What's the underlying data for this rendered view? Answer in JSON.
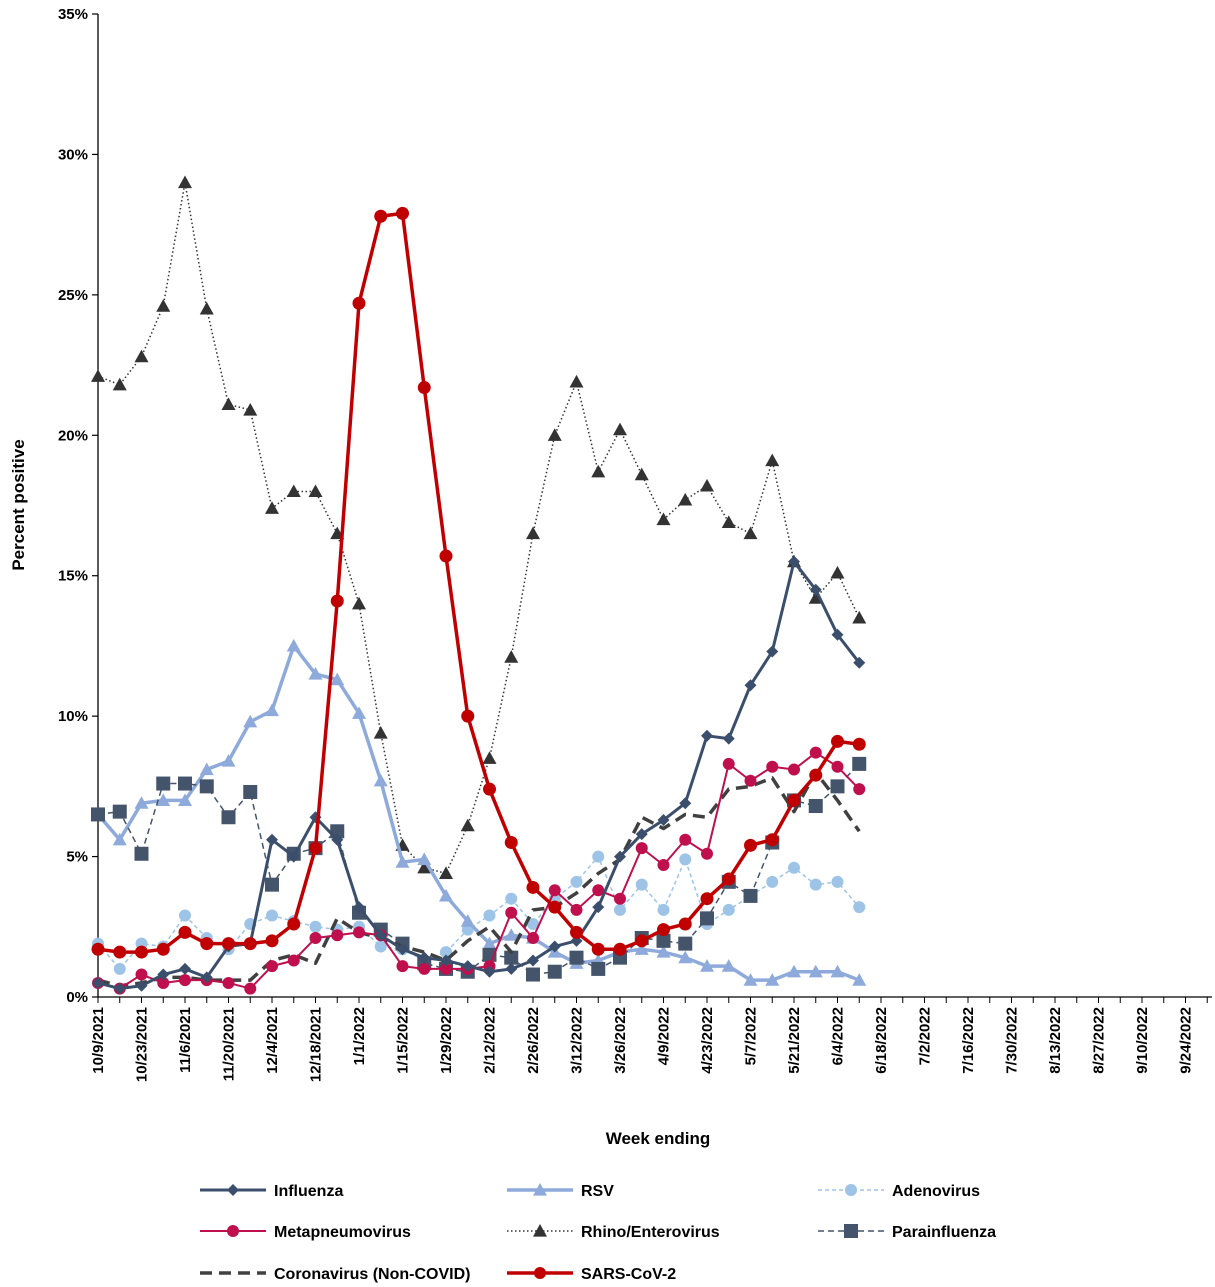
{
  "chart_data": {
    "type": "line",
    "title": "",
    "xlabel": "Week ending",
    "ylabel": "Percent positive",
    "ylim": [
      0,
      35
    ],
    "y_ticks": [
      "0%",
      "5%",
      "10%",
      "15%",
      "20%",
      "25%",
      "30%",
      "35%"
    ],
    "x_tick_labels": [
      "10/9/2021",
      "10/23/2021",
      "11/6/2021",
      "11/20/2021",
      "12/4/2021",
      "12/18/2021",
      "1/1/2022",
      "1/15/2022",
      "1/29/2022",
      "2/12/2022",
      "2/26/2022",
      "3/12/2022",
      "3/26/2022",
      "4/9/2022",
      "4/23/2022",
      "5/7/2022",
      "5/21/2022",
      "6/4/2022",
      "6/18/2022",
      "7/2/2022",
      "7/16/2022",
      "7/30/2022",
      "8/13/2022",
      "8/27/2022",
      "9/10/2022",
      "9/24/2022"
    ],
    "x": [
      "10/9/2021",
      "10/16/2021",
      "10/23/2021",
      "10/30/2021",
      "11/6/2021",
      "11/13/2021",
      "11/20/2021",
      "11/27/2021",
      "12/4/2021",
      "12/11/2021",
      "12/18/2021",
      "12/25/2021",
      "1/1/2022",
      "1/8/2022",
      "1/15/2022",
      "1/22/2022",
      "1/29/2022",
      "2/5/2022",
      "2/12/2022",
      "2/19/2022",
      "2/26/2022",
      "3/5/2022",
      "3/12/2022",
      "3/19/2022",
      "3/26/2022",
      "4/2/2022",
      "4/9/2022",
      "4/16/2022",
      "4/23/2022",
      "4/30/2022",
      "5/7/2022",
      "5/14/2022",
      "5/21/2022",
      "5/28/2022",
      "6/4/2022",
      "6/11/2022"
    ],
    "grid": false,
    "legend_position": "bottom",
    "series": [
      {
        "name": "Influenza",
        "color": "#3b4e6b",
        "marker": "diamond",
        "dash": "solid",
        "width": 3,
        "values": [
          0.5,
          0.3,
          0.4,
          0.8,
          1.0,
          0.7,
          1.8,
          1.9,
          5.6,
          5.0,
          6.4,
          5.6,
          3.2,
          2.2,
          1.7,
          1.4,
          1.3,
          1.1,
          0.9,
          1.0,
          1.3,
          1.8,
          2.0,
          3.2,
          5.0,
          5.8,
          6.3,
          6.9,
          9.3,
          9.2,
          11.1,
          12.3,
          15.5,
          14.5,
          12.9,
          11.9
        ]
      },
      {
        "name": "RSV",
        "color": "#8eaadb",
        "marker": "triangle",
        "dash": "solid",
        "width": 3.5,
        "values": [
          6.5,
          5.6,
          6.9,
          7.0,
          7.0,
          8.1,
          8.4,
          9.8,
          10.2,
          12.5,
          11.5,
          11.3,
          10.1,
          7.7,
          4.8,
          4.9,
          3.6,
          2.7,
          1.9,
          2.2,
          2.1,
          1.6,
          1.2,
          1.3,
          1.6,
          1.7,
          1.6,
          1.4,
          1.1,
          1.1,
          0.6,
          0.6,
          0.9,
          0.9,
          0.9,
          0.6
        ]
      },
      {
        "name": "Adenovirus",
        "color": "#9dc3e6",
        "marker": "circle",
        "dash": "4,3",
        "width": 1.5,
        "values": [
          1.9,
          1.0,
          1.9,
          1.8,
          2.9,
          2.1,
          1.7,
          2.6,
          2.9,
          2.7,
          2.5,
          2.4,
          2.5,
          1.8,
          1.7,
          1.3,
          1.6,
          2.4,
          2.9,
          3.5,
          2.6,
          3.5,
          4.1,
          5.0,
          3.1,
          4.0,
          3.1,
          4.9,
          2.6,
          3.1,
          3.6,
          4.1,
          4.6,
          4.0,
          4.1,
          3.2
        ]
      },
      {
        "name": "Metapneumovirus",
        "color": "#c00f4d",
        "marker": "circle",
        "dash": "solid",
        "width": 2,
        "values": [
          0.5,
          0.3,
          0.8,
          0.5,
          0.6,
          0.6,
          0.5,
          0.3,
          1.1,
          1.3,
          2.1,
          2.2,
          2.3,
          2.2,
          1.1,
          1.0,
          1.0,
          1.0,
          1.1,
          3.0,
          2.1,
          3.8,
          3.1,
          3.8,
          3.5,
          5.3,
          4.7,
          5.6,
          5.1,
          8.3,
          7.7,
          8.2,
          8.1,
          8.7,
          8.2,
          7.4
        ]
      },
      {
        "name": "Rhino/Enterovirus",
        "color": "#333333",
        "marker": "triangle",
        "dash": "1.5,2.5",
        "width": 1.5,
        "values": [
          22.1,
          21.8,
          22.8,
          24.6,
          29.0,
          24.5,
          21.1,
          20.9,
          17.4,
          18.0,
          18.0,
          16.5,
          14.0,
          9.4,
          5.4,
          4.6,
          4.4,
          6.1,
          8.5,
          12.1,
          16.5,
          20.0,
          21.9,
          18.7,
          20.2,
          18.6,
          17.0,
          17.7,
          18.2,
          16.9,
          16.5,
          19.1,
          15.5,
          14.2,
          15.1,
          13.5
        ]
      },
      {
        "name": "Parainfluenza",
        "color": "#44546a",
        "marker": "square",
        "dash": "6,4",
        "width": 1.5,
        "values": [
          6.5,
          6.6,
          5.1,
          7.6,
          7.6,
          7.5,
          6.4,
          7.3,
          4.0,
          5.1,
          5.3,
          5.9,
          3.0,
          2.4,
          1.9,
          1.2,
          1.0,
          0.9,
          1.5,
          1.4,
          0.8,
          0.9,
          1.4,
          1.0,
          1.4,
          2.1,
          2.0,
          1.9,
          2.8,
          4.1,
          3.6,
          5.5,
          7.0,
          6.8,
          7.5,
          8.3
        ]
      },
      {
        "name": "Coronavirus (Non-COVID)",
        "color": "#404040",
        "marker": "none",
        "dash": "12,7",
        "width": 3.5,
        "values": [
          0.6,
          0.4,
          0.5,
          0.7,
          0.7,
          0.6,
          0.6,
          0.6,
          1.3,
          1.5,
          1.2,
          2.8,
          2.3,
          2.1,
          1.8,
          1.6,
          1.3,
          2.0,
          2.5,
          1.6,
          3.1,
          3.2,
          3.7,
          4.4,
          4.9,
          6.4,
          6.0,
          6.5,
          6.4,
          7.4,
          7.5,
          7.8,
          6.6,
          8.0,
          7.0,
          5.9
        ]
      },
      {
        "name": "SARS-CoV-2",
        "color": "#c00000",
        "marker": "circle",
        "dash": "solid",
        "width": 3.5,
        "values": [
          1.7,
          1.6,
          1.6,
          1.7,
          2.3,
          1.9,
          1.9,
          1.9,
          2.0,
          2.6,
          5.3,
          14.1,
          24.7,
          27.8,
          27.9,
          21.7,
          15.7,
          10.0,
          7.4,
          5.5,
          3.9,
          3.2,
          2.3,
          1.7,
          1.7,
          2.0,
          2.4,
          2.6,
          3.5,
          4.2,
          5.4,
          5.6,
          7.0,
          7.9,
          9.1,
          9.0
        ]
      }
    ]
  }
}
